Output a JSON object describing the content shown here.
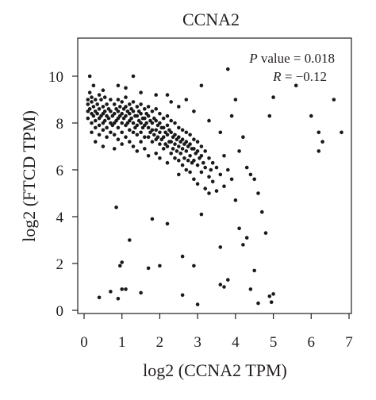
{
  "colors": {
    "point": "#1a1a1a",
    "axis": "#231f20",
    "text": "#231f20"
  },
  "chart_data": {
    "type": "scatter",
    "title": "CCNA2",
    "xlabel": "log2 (CCNA2 TPM)",
    "ylabel": "log2 (FTCD TPM)",
    "xlim": [
      0,
      7
    ],
    "ylim": [
      0,
      10.5
    ],
    "xticks": [
      "0",
      "1",
      "2",
      "3",
      "4",
      "5",
      "6",
      "7"
    ],
    "yticks": [
      "0",
      "2",
      "4",
      "6",
      "8",
      "10"
    ],
    "grid": false,
    "annotations": {
      "p_symbol": "P",
      "p_text": " value = 0.018",
      "r_symbol": "R",
      "r_text": " = −0.12"
    },
    "series": [
      {
        "points": [
          [
            0.1,
            9.0
          ],
          [
            0.1,
            8.8
          ],
          [
            0.1,
            8.5
          ],
          [
            0.1,
            8.2
          ],
          [
            0.15,
            9.3
          ],
          [
            0.15,
            8.6
          ],
          [
            0.2,
            9.1
          ],
          [
            0.2,
            8.9
          ],
          [
            0.2,
            8.4
          ],
          [
            0.2,
            8.0
          ],
          [
            0.2,
            7.6
          ],
          [
            0.15,
            10.0
          ],
          [
            0.25,
            9.6
          ],
          [
            0.25,
            8.7
          ],
          [
            0.25,
            8.3
          ],
          [
            0.3,
            9.0
          ],
          [
            0.3,
            8.5
          ],
          [
            0.3,
            8.1
          ],
          [
            0.3,
            7.8
          ],
          [
            0.3,
            7.2
          ],
          [
            0.35,
            8.8
          ],
          [
            0.35,
            8.4
          ],
          [
            0.4,
            9.2
          ],
          [
            0.4,
            8.6
          ],
          [
            0.4,
            8.2
          ],
          [
            0.4,
            7.9
          ],
          [
            0.4,
            7.5
          ],
          [
            0.45,
            9.0
          ],
          [
            0.45,
            8.3
          ],
          [
            0.5,
            8.7
          ],
          [
            0.5,
            8.4
          ],
          [
            0.5,
            8.0
          ],
          [
            0.5,
            7.7
          ],
          [
            0.5,
            7.0
          ],
          [
            0.55,
            9.1
          ],
          [
            0.55,
            8.5
          ],
          [
            0.55,
            8.1
          ],
          [
            0.6,
            8.8
          ],
          [
            0.6,
            8.3
          ],
          [
            0.6,
            7.8
          ],
          [
            0.6,
            7.4
          ],
          [
            0.65,
            8.6
          ],
          [
            0.65,
            8.2
          ],
          [
            0.7,
            9.0
          ],
          [
            0.7,
            8.5
          ],
          [
            0.7,
            8.0
          ],
          [
            0.7,
            7.6
          ],
          [
            0.75,
            8.3
          ],
          [
            0.75,
            7.9
          ],
          [
            0.8,
            8.8
          ],
          [
            0.8,
            8.4
          ],
          [
            0.8,
            8.0
          ],
          [
            0.8,
            7.5
          ],
          [
            0.8,
            6.9
          ],
          [
            0.85,
            8.6
          ],
          [
            0.85,
            8.1
          ],
          [
            0.9,
            9.0
          ],
          [
            0.9,
            8.5
          ],
          [
            0.9,
            8.2
          ],
          [
            0.9,
            7.8
          ],
          [
            0.9,
            7.3
          ],
          [
            0.95,
            8.7
          ],
          [
            0.95,
            8.3
          ],
          [
            1.0,
            8.9
          ],
          [
            1.0,
            8.4
          ],
          [
            1.0,
            8.0
          ],
          [
            1.0,
            7.6
          ],
          [
            1.0,
            7.1
          ],
          [
            1.05,
            8.6
          ],
          [
            1.05,
            8.2
          ],
          [
            1.1,
            9.1
          ],
          [
            1.1,
            8.7
          ],
          [
            1.1,
            8.3
          ],
          [
            1.1,
            7.9
          ],
          [
            1.1,
            7.4
          ],
          [
            1.15,
            8.5
          ],
          [
            1.15,
            8.0
          ],
          [
            1.2,
            8.8
          ],
          [
            1.2,
            8.4
          ],
          [
            1.2,
            8.1
          ],
          [
            1.2,
            7.7
          ],
          [
            1.2,
            7.2
          ],
          [
            1.25,
            8.6
          ],
          [
            1.25,
            8.2
          ],
          [
            1.3,
            8.9
          ],
          [
            1.3,
            8.5
          ],
          [
            1.3,
            8.0
          ],
          [
            1.3,
            7.6
          ],
          [
            1.3,
            7.0
          ],
          [
            1.35,
            8.3
          ],
          [
            1.35,
            7.8
          ],
          [
            1.4,
            8.7
          ],
          [
            1.4,
            8.3
          ],
          [
            1.4,
            7.9
          ],
          [
            1.4,
            7.5
          ],
          [
            1.4,
            6.8
          ],
          [
            1.45,
            8.5
          ],
          [
            1.45,
            8.1
          ],
          [
            1.5,
            8.8
          ],
          [
            1.5,
            8.4
          ],
          [
            1.5,
            8.0
          ],
          [
            1.5,
            7.6
          ],
          [
            1.5,
            7.2
          ],
          [
            1.55,
            8.2
          ],
          [
            1.55,
            7.8
          ],
          [
            1.6,
            8.6
          ],
          [
            1.6,
            8.2
          ],
          [
            1.6,
            7.9
          ],
          [
            1.6,
            7.4
          ],
          [
            1.6,
            6.9
          ],
          [
            1.65,
            8.4
          ],
          [
            1.65,
            8.0
          ],
          [
            1.7,
            8.7
          ],
          [
            1.7,
            8.3
          ],
          [
            1.7,
            7.8
          ],
          [
            1.7,
            7.4
          ],
          [
            1.7,
            6.6
          ],
          [
            1.75,
            8.1
          ],
          [
            1.75,
            7.6
          ],
          [
            1.8,
            8.5
          ],
          [
            1.8,
            8.0
          ],
          [
            1.8,
            7.7
          ],
          [
            1.8,
            7.2
          ],
          [
            1.85,
            8.2
          ],
          [
            1.85,
            7.5
          ],
          [
            1.9,
            8.6
          ],
          [
            1.9,
            8.1
          ],
          [
            1.9,
            7.7
          ],
          [
            1.9,
            7.3
          ],
          [
            1.9,
            6.7
          ],
          [
            1.95,
            7.9
          ],
          [
            1.95,
            7.4
          ],
          [
            2.0,
            8.4
          ],
          [
            2.0,
            8.0
          ],
          [
            2.0,
            7.6
          ],
          [
            2.0,
            7.1
          ],
          [
            2.0,
            6.5
          ],
          [
            2.05,
            7.8
          ],
          [
            2.05,
            7.3
          ],
          [
            2.1,
            8.2
          ],
          [
            2.1,
            7.8
          ],
          [
            2.1,
            7.4
          ],
          [
            2.1,
            6.9
          ],
          [
            2.15,
            7.6
          ],
          [
            2.15,
            7.1
          ],
          [
            2.2,
            8.3
          ],
          [
            2.2,
            7.9
          ],
          [
            2.2,
            7.5
          ],
          [
            2.2,
            7.0
          ],
          [
            2.2,
            6.3
          ],
          [
            2.25,
            7.7
          ],
          [
            2.25,
            7.2
          ],
          [
            2.3,
            8.1
          ],
          [
            2.3,
            7.6
          ],
          [
            2.3,
            7.2
          ],
          [
            2.3,
            6.7
          ],
          [
            2.35,
            7.4
          ],
          [
            2.35,
            6.9
          ],
          [
            2.4,
            8.0
          ],
          [
            2.4,
            7.5
          ],
          [
            2.4,
            7.1
          ],
          [
            2.4,
            6.5
          ],
          [
            2.45,
            7.3
          ],
          [
            2.45,
            6.8
          ],
          [
            2.5,
            7.8
          ],
          [
            2.5,
            7.4
          ],
          [
            2.5,
            7.0
          ],
          [
            2.5,
            6.4
          ],
          [
            2.5,
            5.8
          ],
          [
            2.55,
            7.2
          ],
          [
            2.55,
            6.7
          ],
          [
            2.6,
            7.7
          ],
          [
            2.6,
            7.3
          ],
          [
            2.6,
            6.9
          ],
          [
            2.6,
            6.2
          ],
          [
            2.65,
            7.1
          ],
          [
            2.65,
            6.5
          ],
          [
            2.7,
            7.6
          ],
          [
            2.7,
            7.2
          ],
          [
            2.7,
            6.8
          ],
          [
            2.7,
            6.0
          ],
          [
            2.75,
            7.0
          ],
          [
            2.75,
            6.4
          ],
          [
            2.8,
            7.5
          ],
          [
            2.8,
            7.1
          ],
          [
            2.8,
            6.6
          ],
          [
            2.8,
            5.9
          ],
          [
            2.85,
            6.9
          ],
          [
            2.85,
            6.3
          ],
          [
            2.9,
            7.3
          ],
          [
            2.9,
            6.9
          ],
          [
            2.9,
            6.4
          ],
          [
            2.9,
            5.6
          ],
          [
            2.95,
            6.7
          ],
          [
            3.0,
            7.2
          ],
          [
            3.0,
            6.8
          ],
          [
            3.0,
            6.2
          ],
          [
            3.0,
            5.4
          ],
          [
            3.05,
            6.5
          ],
          [
            3.1,
            7.0
          ],
          [
            3.1,
            6.6
          ],
          [
            3.1,
            5.9
          ],
          [
            3.15,
            6.3
          ],
          [
            3.2,
            6.8
          ],
          [
            3.2,
            6.1
          ],
          [
            3.2,
            5.2
          ],
          [
            3.3,
            6.5
          ],
          [
            3.3,
            5.7
          ],
          [
            3.35,
            6.0
          ],
          [
            3.4,
            6.3
          ],
          [
            3.4,
            5.5
          ],
          [
            3.5,
            6.1
          ],
          [
            3.5,
            5.1
          ],
          [
            3.6,
            5.8
          ],
          [
            3.7,
            6.6
          ],
          [
            3.7,
            5.3
          ],
          [
            3.8,
            6.0
          ],
          [
            3.9,
            5.6
          ],
          [
            0.5,
            9.4
          ],
          [
            0.9,
            9.6
          ],
          [
            1.1,
            9.5
          ],
          [
            1.3,
            10.0
          ],
          [
            1.5,
            9.3
          ],
          [
            1.9,
            9.2
          ],
          [
            2.2,
            9.2
          ],
          [
            2.3,
            8.9
          ],
          [
            2.5,
            8.7
          ],
          [
            2.7,
            9.0
          ],
          [
            2.9,
            8.5
          ],
          [
            3.1,
            9.6
          ],
          [
            3.3,
            8.1
          ],
          [
            3.6,
            7.6
          ],
          [
            3.8,
            10.3
          ],
          [
            3.9,
            8.3
          ],
          [
            4.0,
            9.0
          ],
          [
            4.1,
            6.8
          ],
          [
            4.2,
            7.4
          ],
          [
            4.3,
            6.1
          ],
          [
            4.5,
            5.6
          ],
          [
            4.6,
            5.0
          ],
          [
            4.4,
            5.8
          ],
          [
            4.9,
            8.3
          ],
          [
            5.0,
            9.1
          ],
          [
            5.6,
            9.6
          ],
          [
            6.0,
            8.3
          ],
          [
            6.2,
            7.6
          ],
          [
            6.2,
            6.8
          ],
          [
            6.3,
            7.2
          ],
          [
            6.6,
            9.0
          ],
          [
            6.8,
            7.6
          ],
          [
            0.4,
            0.55
          ],
          [
            0.7,
            0.8
          ],
          [
            0.9,
            0.5
          ],
          [
            0.95,
            1.9
          ],
          [
            1.0,
            2.05
          ],
          [
            1.0,
            0.9
          ],
          [
            1.1,
            0.9
          ],
          [
            1.2,
            3.0
          ],
          [
            0.85,
            4.4
          ],
          [
            1.5,
            0.75
          ],
          [
            1.7,
            1.8
          ],
          [
            1.8,
            3.9
          ],
          [
            2.0,
            1.9
          ],
          [
            2.2,
            3.7
          ],
          [
            2.6,
            0.65
          ],
          [
            2.6,
            2.3
          ],
          [
            2.9,
            1.9
          ],
          [
            3.0,
            0.25
          ],
          [
            3.1,
            4.1
          ],
          [
            3.3,
            5.0
          ],
          [
            3.6,
            1.1
          ],
          [
            3.6,
            2.7
          ],
          [
            3.7,
            1.0
          ],
          [
            3.8,
            1.3
          ],
          [
            4.0,
            4.7
          ],
          [
            4.2,
            2.8
          ],
          [
            4.3,
            3.1
          ],
          [
            4.4,
            0.9
          ],
          [
            4.6,
            0.3
          ],
          [
            4.7,
            4.2
          ],
          [
            4.8,
            3.3
          ],
          [
            4.9,
            0.6
          ],
          [
            4.95,
            0.35
          ],
          [
            5.0,
            0.7
          ],
          [
            4.5,
            1.7
          ],
          [
            4.1,
            3.5
          ]
        ]
      }
    ]
  }
}
